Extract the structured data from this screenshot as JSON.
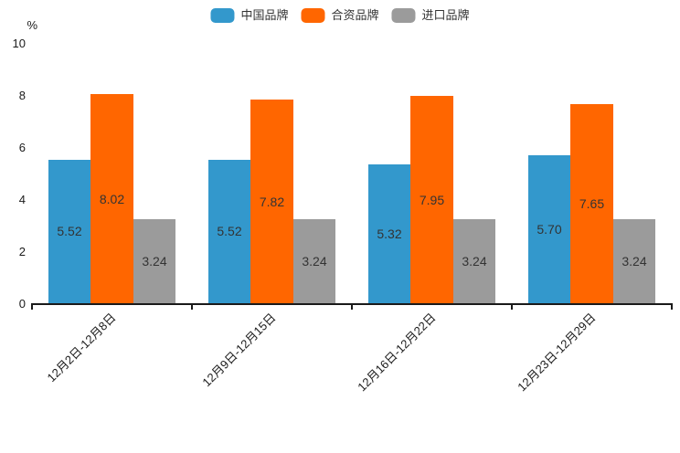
{
  "chart_data": {
    "type": "bar",
    "title": "",
    "unit_label": "%",
    "categories": [
      "12月2日-12月8日",
      "12月9日-12月15日",
      "12月16日-12月22日",
      "12月23日-12月29日"
    ],
    "series": [
      {
        "name": "中国品牌",
        "color": "#3398CC",
        "values": [
          5.52,
          5.52,
          5.32,
          5.7
        ]
      },
      {
        "name": "合资品牌",
        "color": "#FF6600",
        "values": [
          8.02,
          7.82,
          7.95,
          7.65
        ]
      },
      {
        "name": "进口品牌",
        "color": "#9B9B9B",
        "values": [
          3.24,
          3.24,
          3.24,
          3.24
        ]
      }
    ],
    "value_label_decimals": 2,
    "value_label_color": "#333333",
    "ylim": [
      0,
      10
    ],
    "yticks": [
      0,
      2,
      4,
      6,
      8,
      10
    ],
    "grid": false,
    "legend_position": "top",
    "axis_color": "#1a1a1a"
  }
}
